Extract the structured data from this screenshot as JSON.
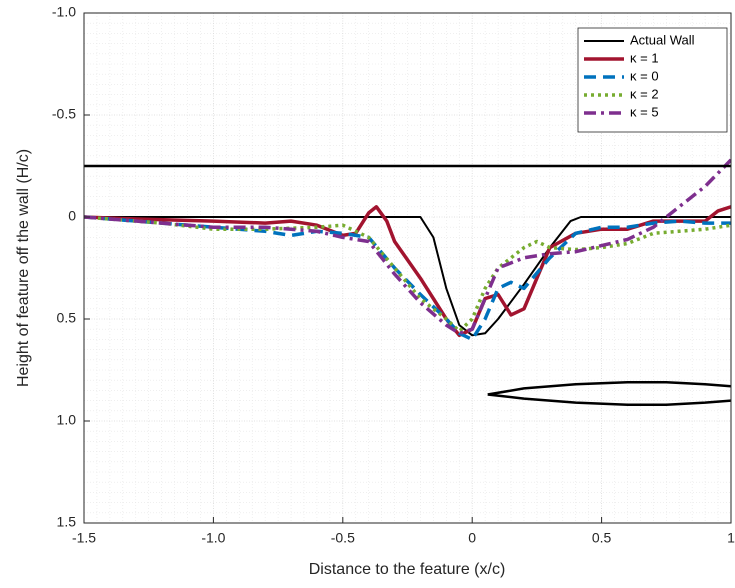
{
  "chart_data": {
    "type": "line",
    "xlabel": "Distance to the feature (x/c)",
    "ylabel": "Height of feature off the wall (H/c)",
    "xlim": [
      -1.5,
      1
    ],
    "ylim": [
      -1,
      1.5
    ],
    "y_reversed": true,
    "xticks": [
      -1.5,
      {
        "value": -1,
        "label": "-1.0"
      },
      -0.5,
      0,
      0.5,
      1
    ],
    "yticks": [
      {
        "value": -1,
        "label": "-1.0"
      },
      -0.5,
      0,
      0.5,
      {
        "value": 1,
        "label": "1.0"
      },
      1.5
    ],
    "grid": true,
    "minor_grid": true,
    "legend": "top-right",
    "series": [
      {
        "name": "Actual Wall",
        "color": "#000000",
        "style": "solid",
        "width": 2,
        "x": [
          -1.5,
          -0.2,
          -0.15,
          -0.1,
          -0.05,
          0,
          0.05,
          0.1,
          0.2,
          0.3,
          0.38,
          0.42,
          1
        ],
        "values": [
          0,
          0,
          0.1,
          0.35,
          0.53,
          0.58,
          0.57,
          0.5,
          0.33,
          0.15,
          0.02,
          0,
          0
        ]
      },
      {
        "name": "κ = 1",
        "color": "#a2142f",
        "style": "solid",
        "width": 3.5,
        "x": [
          -1.5,
          -1.3,
          -1.0,
          -0.8,
          -0.7,
          -0.6,
          -0.5,
          -0.45,
          -0.4,
          -0.37,
          -0.33,
          -0.3,
          -0.2,
          -0.1,
          -0.05,
          0,
          0.05,
          0.1,
          0.15,
          0.2,
          0.25,
          0.3,
          0.4,
          0.5,
          0.6,
          0.7,
          0.8,
          0.9,
          0.95,
          1
        ],
        "values": [
          0,
          0.01,
          0.02,
          0.03,
          0.02,
          0.04,
          0.09,
          0.08,
          -0.02,
          -0.05,
          0.02,
          0.12,
          0.3,
          0.5,
          0.58,
          0.55,
          0.4,
          0.38,
          0.48,
          0.45,
          0.3,
          0.15,
          0.08,
          0.06,
          0.06,
          0.02,
          0.02,
          0.02,
          -0.03,
          -0.05
        ]
      },
      {
        "name": "κ = 0",
        "color": "#0072bd",
        "style": "dashed",
        "width": 3.5,
        "x": [
          -1.5,
          -1.2,
          -1.0,
          -0.8,
          -0.7,
          -0.6,
          -0.5,
          -0.4,
          -0.3,
          -0.2,
          -0.1,
          -0.05,
          0,
          0.05,
          0.1,
          0.15,
          0.2,
          0.3,
          0.4,
          0.5,
          0.6,
          0.7,
          0.8,
          0.9,
          1
        ],
        "values": [
          0,
          0.03,
          0.05,
          0.07,
          0.09,
          0.07,
          0.08,
          0.1,
          0.25,
          0.38,
          0.5,
          0.57,
          0.6,
          0.5,
          0.35,
          0.32,
          0.35,
          0.2,
          0.08,
          0.05,
          0.05,
          0.03,
          0.02,
          0.03,
          0.03
        ]
      },
      {
        "name": "κ = 2",
        "color": "#77ac30",
        "style": "dotted",
        "width": 3.5,
        "x": [
          -1.5,
          -1.2,
          -1.0,
          -0.8,
          -0.6,
          -0.5,
          -0.4,
          -0.3,
          -0.2,
          -0.1,
          -0.05,
          0,
          0.05,
          0.1,
          0.2,
          0.25,
          0.3,
          0.4,
          0.5,
          0.6,
          0.7,
          0.8,
          0.9,
          1
        ],
        "values": [
          0,
          0.03,
          0.06,
          0.06,
          0.05,
          0.04,
          0.1,
          0.25,
          0.4,
          0.5,
          0.56,
          0.5,
          0.35,
          0.25,
          0.15,
          0.12,
          0.15,
          0.16,
          0.15,
          0.13,
          0.08,
          0.07,
          0.06,
          0.04
        ]
      },
      {
        "name": "κ = 5",
        "color": "#7e2f8e",
        "style": "dashdot",
        "width": 3.5,
        "x": [
          -1.5,
          -1.2,
          -1.0,
          -0.8,
          -0.6,
          -0.5,
          -0.4,
          -0.3,
          -0.2,
          -0.1,
          -0.05,
          0,
          0.05,
          0.1,
          0.2,
          0.3,
          0.4,
          0.5,
          0.6,
          0.7,
          0.8,
          0.9,
          1
        ],
        "values": [
          0,
          0.03,
          0.05,
          0.05,
          0.07,
          0.1,
          0.12,
          0.28,
          0.42,
          0.53,
          0.57,
          0.55,
          0.4,
          0.25,
          0.2,
          0.18,
          0.17,
          0.14,
          0.11,
          0.05,
          -0.05,
          -0.15,
          -0.28
        ]
      },
      {
        "color": "#000000",
        "style": "solid",
        "width": 2.5,
        "x": [
          -1.5,
          1
        ],
        "values": [
          -0.25,
          -0.25
        ]
      },
      {
        "color": "#000000",
        "style": "solid",
        "width": 2.5,
        "x": [
          0.06,
          0.2,
          0.4,
          0.6,
          0.75,
          0.9,
          1,
          null,
          1,
          0.9,
          0.75,
          0.6,
          0.4,
          0.2,
          0.06
        ],
        "values": [
          0.87,
          0.84,
          0.82,
          0.81,
          0.81,
          0.82,
          0.83,
          null,
          0.9,
          0.91,
          0.92,
          0.92,
          0.91,
          0.89,
          0.87
        ]
      }
    ]
  }
}
